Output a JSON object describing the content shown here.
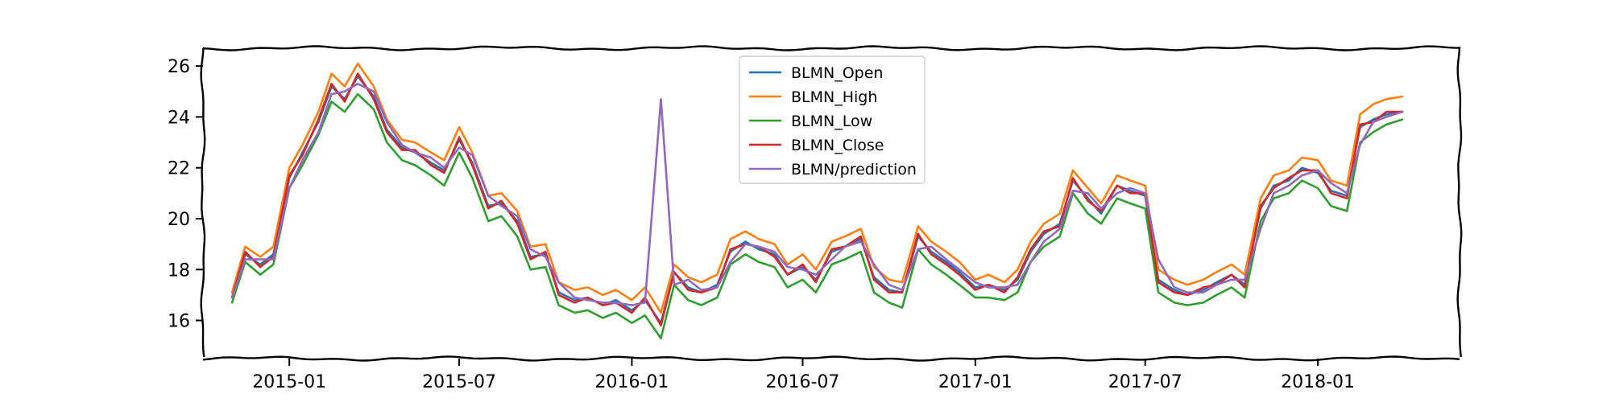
{
  "chart_data": {
    "type": "line",
    "title": "",
    "xlabel": "",
    "ylabel": "",
    "x_axis": {
      "type": "date",
      "range": [
        "2014-10-01",
        "2018-06-01"
      ],
      "ticks": [
        {
          "date": "2015-01-01",
          "label": "2015-01"
        },
        {
          "date": "2015-07-01",
          "label": "2015-07"
        },
        {
          "date": "2016-01-01",
          "label": "2016-01"
        },
        {
          "date": "2016-07-01",
          "label": "2016-07"
        },
        {
          "date": "2017-01-01",
          "label": "2017-01"
        },
        {
          "date": "2017-07-01",
          "label": "2017-07"
        },
        {
          "date": "2018-01-01",
          "label": "2018-01"
        }
      ]
    },
    "y_axis": {
      "range": [
        14.5,
        26.7
      ],
      "ticks": [
        16,
        18,
        20,
        22,
        24,
        26
      ]
    },
    "grid": false,
    "legend_position": "top-center",
    "style": "xkcd",
    "x": [
      "2014-11-01",
      "2014-11-15",
      "2014-12-01",
      "2014-12-15",
      "2015-01-01",
      "2015-01-15",
      "2015-02-01",
      "2015-02-15",
      "2015-03-01",
      "2015-03-15",
      "2015-04-01",
      "2015-04-15",
      "2015-05-01",
      "2015-05-15",
      "2015-06-01",
      "2015-06-15",
      "2015-07-01",
      "2015-07-15",
      "2015-08-01",
      "2015-08-15",
      "2015-09-01",
      "2015-09-15",
      "2015-10-01",
      "2015-10-15",
      "2015-11-01",
      "2015-11-15",
      "2015-12-01",
      "2015-12-15",
      "2016-01-01",
      "2016-01-15",
      "2016-02-01",
      "2016-02-15",
      "2016-03-01",
      "2016-03-15",
      "2016-04-01",
      "2016-04-15",
      "2016-05-01",
      "2016-05-15",
      "2016-06-01",
      "2016-06-15",
      "2016-07-01",
      "2016-07-15",
      "2016-08-01",
      "2016-08-15",
      "2016-09-01",
      "2016-09-15",
      "2016-10-01",
      "2016-10-15",
      "2016-11-01",
      "2016-11-15",
      "2016-12-01",
      "2016-12-15",
      "2017-01-01",
      "2017-01-15",
      "2017-02-01",
      "2017-02-15",
      "2017-03-01",
      "2017-03-15",
      "2017-04-01",
      "2017-04-15",
      "2017-05-01",
      "2017-05-15",
      "2017-06-01",
      "2017-06-15",
      "2017-07-01",
      "2017-07-15",
      "2017-08-01",
      "2017-08-15",
      "2017-09-01",
      "2017-09-15",
      "2017-10-01",
      "2017-10-15",
      "2017-11-01",
      "2017-11-15",
      "2017-12-01",
      "2017-12-15",
      "2018-01-01",
      "2018-01-15",
      "2018-02-01",
      "2018-02-15",
      "2018-03-01",
      "2018-03-15",
      "2018-04-01"
    ],
    "series": [
      {
        "name": "BLMN_Open",
        "color": "#1f77b4",
        "values": [
          16.9,
          18.6,
          18.2,
          18.6,
          21.6,
          22.6,
          23.8,
          25.2,
          24.7,
          25.6,
          24.8,
          23.5,
          22.8,
          22.6,
          22.2,
          21.9,
          23.1,
          22.2,
          20.5,
          20.6,
          19.9,
          18.5,
          18.6,
          17.1,
          16.8,
          16.9,
          16.6,
          16.8,
          16.4,
          16.8,
          15.9,
          17.9,
          17.3,
          17.1,
          17.4,
          18.7,
          19.1,
          18.8,
          18.6,
          17.8,
          18.1,
          17.6,
          18.7,
          18.9,
          19.2,
          17.7,
          17.2,
          17.1,
          19.3,
          18.7,
          18.3,
          17.9,
          17.3,
          17.4,
          17.2,
          17.6,
          18.7,
          19.4,
          19.8,
          21.5,
          20.8,
          20.2,
          21.3,
          21.1,
          20.9,
          17.6,
          17.2,
          17.0,
          17.2,
          17.5,
          17.8,
          17.4,
          20.4,
          21.3,
          21.5,
          22.0,
          21.8,
          21.1,
          20.9,
          23.6,
          23.9,
          24.1,
          24.2
        ]
      },
      {
        "name": "BLMN_High",
        "color": "#ff7f0e",
        "values": [
          17.1,
          18.9,
          18.5,
          18.9,
          22.0,
          22.9,
          24.2,
          25.7,
          25.2,
          26.1,
          25.2,
          23.9,
          23.1,
          23.0,
          22.6,
          22.3,
          23.6,
          22.6,
          20.9,
          21.0,
          20.3,
          18.9,
          19.0,
          17.5,
          17.2,
          17.3,
          17.0,
          17.2,
          16.8,
          17.3,
          16.3,
          18.2,
          17.7,
          17.5,
          17.8,
          19.2,
          19.5,
          19.2,
          19.0,
          18.2,
          18.6,
          18.0,
          19.1,
          19.3,
          19.6,
          18.1,
          17.6,
          17.5,
          19.7,
          19.1,
          18.7,
          18.3,
          17.6,
          17.8,
          17.5,
          18.0,
          19.1,
          19.8,
          20.2,
          21.9,
          21.2,
          20.6,
          21.7,
          21.5,
          21.3,
          18.0,
          17.6,
          17.4,
          17.6,
          17.9,
          18.2,
          17.8,
          20.8,
          21.7,
          21.9,
          22.4,
          22.3,
          21.5,
          21.3,
          24.1,
          24.5,
          24.7,
          24.8
        ]
      },
      {
        "name": "BLMN_Low",
        "color": "#2ca02c",
        "values": [
          16.7,
          18.3,
          17.8,
          18.2,
          21.2,
          22.1,
          23.3,
          24.6,
          24.2,
          24.9,
          24.3,
          23.0,
          22.3,
          22.1,
          21.7,
          21.3,
          22.6,
          21.6,
          19.9,
          20.1,
          19.3,
          18.0,
          18.1,
          16.6,
          16.3,
          16.4,
          16.1,
          16.3,
          15.9,
          16.2,
          15.3,
          17.4,
          16.8,
          16.6,
          16.9,
          18.2,
          18.6,
          18.3,
          18.1,
          17.3,
          17.6,
          17.1,
          18.2,
          18.4,
          18.7,
          17.1,
          16.7,
          16.5,
          18.8,
          18.2,
          17.8,
          17.4,
          16.9,
          16.9,
          16.8,
          17.1,
          18.3,
          18.9,
          19.3,
          21.0,
          20.2,
          19.8,
          20.8,
          20.6,
          20.4,
          17.1,
          16.7,
          16.6,
          16.7,
          17.0,
          17.3,
          16.9,
          19.9,
          20.8,
          21.0,
          21.5,
          21.2,
          20.5,
          20.3,
          23.0,
          23.4,
          23.7,
          23.9
        ]
      },
      {
        "name": "BLMN_Close",
        "color": "#d62728",
        "values": [
          16.9,
          18.7,
          18.1,
          18.5,
          21.7,
          22.5,
          23.9,
          25.3,
          24.6,
          25.7,
          24.7,
          23.4,
          22.7,
          22.7,
          22.1,
          21.8,
          23.2,
          22.1,
          20.4,
          20.7,
          19.8,
          18.4,
          18.7,
          17.0,
          16.7,
          16.9,
          16.6,
          16.7,
          16.3,
          16.9,
          15.8,
          17.9,
          17.2,
          17.1,
          17.3,
          18.8,
          19.0,
          18.9,
          18.5,
          17.8,
          18.2,
          17.5,
          18.8,
          18.9,
          19.3,
          17.6,
          17.1,
          17.1,
          19.4,
          18.6,
          18.2,
          17.8,
          17.2,
          17.4,
          17.1,
          17.7,
          18.8,
          19.5,
          19.7,
          21.6,
          20.7,
          20.3,
          21.3,
          21.0,
          21.0,
          17.5,
          17.1,
          17.0,
          17.3,
          17.4,
          17.8,
          17.3,
          20.5,
          21.2,
          21.6,
          21.9,
          21.9,
          21.0,
          20.8,
          23.7,
          23.8,
          24.2,
          24.2
        ]
      },
      {
        "name": "BLMN/prediction",
        "color": "#9467bd",
        "values": [
          16.9,
          18.4,
          18.4,
          18.4,
          21.2,
          22.3,
          23.4,
          24.9,
          25.0,
          25.3,
          25.0,
          23.8,
          22.9,
          22.6,
          22.4,
          22.0,
          22.8,
          22.5,
          20.9,
          20.5,
          20.1,
          18.8,
          18.5,
          17.5,
          16.9,
          16.8,
          16.7,
          16.7,
          16.6,
          16.7,
          24.7,
          17.4,
          17.6,
          17.2,
          17.3,
          18.3,
          19.0,
          18.9,
          18.7,
          18.1,
          18.0,
          17.8,
          18.4,
          18.9,
          19.1,
          18.2,
          17.4,
          17.2,
          18.8,
          18.9,
          18.4,
          18.0,
          17.5,
          17.3,
          17.3,
          17.4,
          18.3,
          19.1,
          19.6,
          21.1,
          21.0,
          20.4,
          21.0,
          21.2,
          21.0,
          18.4,
          17.3,
          17.1,
          17.1,
          17.4,
          17.6,
          17.6,
          19.6,
          21.0,
          21.3,
          21.7,
          21.9,
          21.4,
          21.0,
          22.9,
          23.8,
          24.0,
          24.2
        ]
      }
    ]
  }
}
